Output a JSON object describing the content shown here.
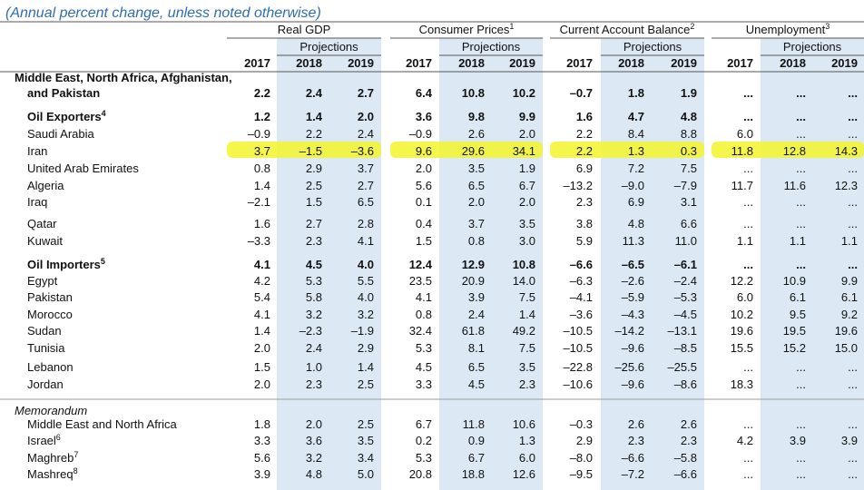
{
  "subtitle": "(Annual percent change, unless noted otherwise)",
  "groups": [
    {
      "label": "Real GDP",
      "projections": "Projections",
      "years": [
        "2017",
        "2018",
        "2019"
      ]
    },
    {
      "label": "Consumer Prices",
      "note": "1",
      "projections": "Projections",
      "years": [
        "2017",
        "2018",
        "2019"
      ]
    },
    {
      "label": "Current Account Balance",
      "note": "2",
      "projections": "Projections",
      "years": [
        "2017",
        "2018",
        "2019"
      ]
    },
    {
      "label": "Unemployment",
      "note": "3",
      "projections": "Projections",
      "years": [
        "2017",
        "2018",
        "2019"
      ]
    }
  ],
  "sections": [
    {
      "rows": [
        {
          "label": "Middle East, North Africa, Afghanistan,",
          "label_cont": "and Pakistan",
          "bold": true,
          "values": [
            "2.2",
            "2.4",
            "2.7",
            "6.4",
            "10.8",
            "10.2",
            "–0.7",
            "1.8",
            "1.9",
            "...",
            "...",
            "..."
          ]
        },
        {
          "label": "Oil Exporters",
          "note": "4",
          "bold": true,
          "values": [
            "1.2",
            "1.4",
            "2.0",
            "3.6",
            "9.8",
            "9.9",
            "1.6",
            "4.7",
            "4.8",
            "...",
            "...",
            "..."
          ]
        },
        {
          "label": "Saudi Arabia",
          "values": [
            "–0.9",
            "2.2",
            "2.4",
            "–0.9",
            "2.6",
            "2.0",
            "2.2",
            "8.4",
            "8.8",
            "6.0",
            "...",
            "..."
          ]
        },
        {
          "label": "Iran",
          "highlight": true,
          "values": [
            "3.7",
            "–1.5",
            "–3.6",
            "9.6",
            "29.6",
            "34.1",
            "2.2",
            "1.3",
            "0.3",
            "11.8",
            "12.8",
            "14.3"
          ]
        },
        {
          "label": "United Arab Emirates",
          "values": [
            "0.8",
            "2.9",
            "3.7",
            "2.0",
            "3.5",
            "1.9",
            "6.9",
            "7.2",
            "7.5",
            "...",
            "...",
            "..."
          ]
        },
        {
          "label": "Algeria",
          "values": [
            "1.4",
            "2.5",
            "2.7",
            "5.6",
            "6.5",
            "6.7",
            "–13.2",
            "–9.0",
            "–7.9",
            "11.7",
            "11.6",
            "12.3"
          ]
        },
        {
          "label": "Iraq",
          "values": [
            "–2.1",
            "1.5",
            "6.5",
            "0.1",
            "2.0",
            "2.0",
            "2.3",
            "6.9",
            "3.1",
            "...",
            "...",
            "..."
          ]
        },
        {
          "label": "Qatar",
          "values": [
            "1.6",
            "2.7",
            "2.8",
            "0.4",
            "3.7",
            "3.5",
            "3.8",
            "4.8",
            "6.6",
            "...",
            "...",
            "..."
          ]
        },
        {
          "label": "Kuwait",
          "values": [
            "–3.3",
            "2.3",
            "4.1",
            "1.5",
            "0.8",
            "3.0",
            "5.9",
            "11.3",
            "11.0",
            "1.1",
            "1.1",
            "1.1"
          ]
        },
        {
          "label": "Oil Importers",
          "note": "5",
          "bold": true,
          "values": [
            "4.1",
            "4.5",
            "4.0",
            "12.4",
            "12.9",
            "10.8",
            "–6.6",
            "–6.5",
            "–6.1",
            "...",
            "...",
            "..."
          ]
        },
        {
          "label": "Egypt",
          "values": [
            "4.2",
            "5.3",
            "5.5",
            "23.5",
            "20.9",
            "14.0",
            "–6.3",
            "–2.6",
            "–2.4",
            "12.2",
            "10.9",
            "9.9"
          ]
        },
        {
          "label": "Pakistan",
          "values": [
            "5.4",
            "5.8",
            "4.0",
            "4.1",
            "3.9",
            "7.5",
            "–4.1",
            "–5.9",
            "–5.3",
            "6.0",
            "6.1",
            "6.1"
          ]
        },
        {
          "label": "Morocco",
          "values": [
            "4.1",
            "3.2",
            "3.2",
            "0.8",
            "2.4",
            "1.4",
            "–3.6",
            "–4.3",
            "–4.5",
            "10.2",
            "9.5",
            "9.2"
          ]
        },
        {
          "label": "Sudan",
          "values": [
            "1.4",
            "–2.3",
            "–1.9",
            "32.4",
            "61.8",
            "49.2",
            "–10.5",
            "–14.2",
            "–13.1",
            "19.6",
            "19.5",
            "19.6"
          ]
        },
        {
          "label": "Tunisia",
          "values": [
            "2.0",
            "2.4",
            "2.9",
            "5.3",
            "8.1",
            "7.5",
            "–10.5",
            "–9.6",
            "–8.5",
            "15.5",
            "15.2",
            "15.0"
          ]
        },
        {
          "label": "Lebanon",
          "values": [
            "1.5",
            "1.0",
            "1.4",
            "4.5",
            "6.5",
            "3.5",
            "–22.8",
            "–25.6",
            "–25.5",
            "...",
            "...",
            "..."
          ]
        },
        {
          "label": "Jordan",
          "values": [
            "2.0",
            "2.3",
            "2.5",
            "3.3",
            "4.5",
            "2.3",
            "–10.6",
            "–9.6",
            "–8.6",
            "18.3",
            "...",
            "..."
          ]
        }
      ]
    },
    {
      "heading": "Memorandum",
      "rows": [
        {
          "label": "Middle East and North Africa",
          "values": [
            "1.8",
            "2.0",
            "2.5",
            "6.7",
            "11.8",
            "10.6",
            "–0.3",
            "2.6",
            "2.6",
            "...",
            "...",
            "..."
          ]
        },
        {
          "label": "Israel",
          "note": "6",
          "values": [
            "3.3",
            "3.6",
            "3.5",
            "0.2",
            "0.9",
            "1.3",
            "2.9",
            "2.3",
            "2.3",
            "4.2",
            "3.9",
            "3.9"
          ]
        },
        {
          "label": "Maghreb",
          "note": "7",
          "values": [
            "5.6",
            "3.2",
            "3.4",
            "5.3",
            "6.7",
            "6.0",
            "–8.0",
            "–6.6",
            "–5.8",
            "...",
            "...",
            "..."
          ]
        },
        {
          "label": "Mashreq",
          "note": "8",
          "values": [
            "3.9",
            "4.8",
            "5.0",
            "20.8",
            "18.8",
            "12.6",
            "–9.5",
            "–7.2",
            "–6.6",
            "...",
            "...",
            "..."
          ]
        }
      ]
    }
  ]
}
